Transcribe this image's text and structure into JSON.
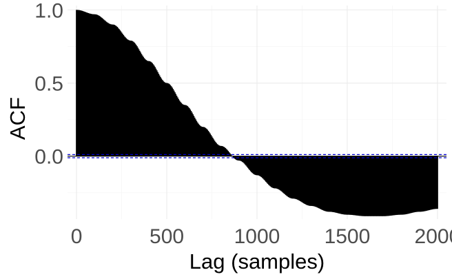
{
  "chart_data": {
    "type": "bar",
    "title": "",
    "xlabel": "Lag (samples)",
    "ylabel": "ACF",
    "xlim": [
      -50,
      2050
    ],
    "ylim": [
      -0.43,
      1.03
    ],
    "x_ticks": [
      0,
      500,
      1000,
      1500,
      2000
    ],
    "x_tick_labels": [
      "0",
      "500",
      "1000",
      "1500",
      "2000"
    ],
    "y_ticks": [
      0.0,
      0.5,
      1.0
    ],
    "y_tick_labels": [
      "0.0",
      "0.5",
      "1.0"
    ],
    "grid": true,
    "legend": "none",
    "series": [
      {
        "x": [
          0,
          100,
          200,
          300,
          400,
          500,
          600,
          700,
          800,
          900,
          1000,
          1100,
          1200,
          1300,
          1400,
          1500,
          1600,
          1700,
          1800,
          1900,
          2000
        ],
        "values": [
          1.0,
          0.97,
          0.9,
          0.79,
          0.65,
          0.5,
          0.35,
          0.2,
          0.07,
          -0.03,
          -0.13,
          -0.22,
          -0.29,
          -0.34,
          -0.38,
          -0.4,
          -0.41,
          -0.41,
          -0.4,
          -0.38,
          -0.36
        ]
      }
    ],
    "bar_color": "#000000",
    "confidence_band": [
      -0.011,
      0.011
    ],
    "zero_line_color": "#000000",
    "confidence_line_color": "#0000cc"
  }
}
